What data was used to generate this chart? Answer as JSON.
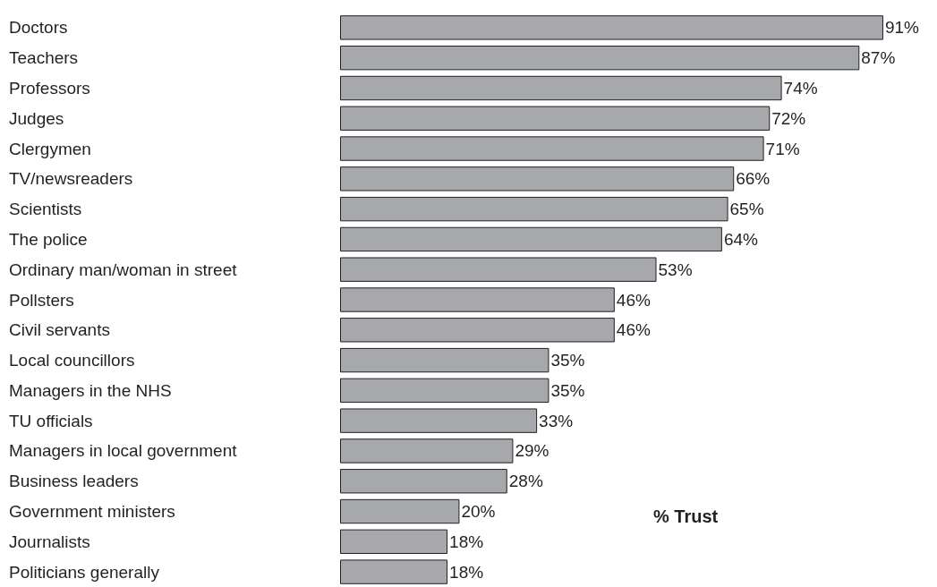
{
  "chart_data": {
    "type": "bar",
    "orientation": "horizontal",
    "categories": [
      "Doctors",
      "Teachers",
      "Professors",
      "Judges",
      "Clergymen",
      "TV/newsreaders",
      "Scientists",
      "The police",
      "Ordinary man/woman in street",
      "Pollsters",
      "Civil servants",
      "Local councillors",
      "Managers in the NHS",
      "TU officials",
      "Managers in local government",
      "Business leaders",
      "Government ministers",
      "Journalists",
      "Politicians generally"
    ],
    "values": [
      91,
      87,
      74,
      72,
      71,
      66,
      65,
      64,
      53,
      46,
      46,
      35,
      35,
      33,
      29,
      28,
      20,
      18,
      18
    ],
    "value_labels": [
      "91%",
      "87%",
      "74%",
      "72%",
      "71%",
      "66%",
      "65%",
      "64%",
      "53%",
      "46%",
      "46%",
      "35%",
      "35%",
      "33%",
      "29%",
      "28%",
      "20%",
      "18%",
      "18%"
    ],
    "color": "#a6a8ab",
    "annotations": [
      "% Trust"
    ]
  }
}
